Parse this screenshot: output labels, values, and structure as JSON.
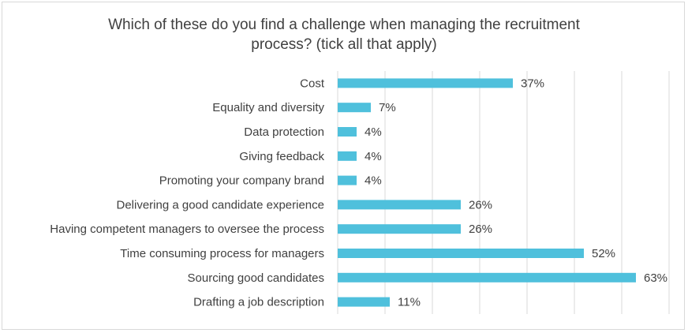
{
  "chart_data": {
    "type": "bar",
    "orientation": "horizontal",
    "title_lines": [
      "Which of these do you find a challenge when managing the recruitment",
      "process? (tick all that apply)"
    ],
    "categories": [
      "Cost",
      "Equality and diversity",
      "Data protection",
      "Giving feedback",
      "Promoting your company brand",
      "Delivering a good candidate experience",
      "Having competent managers to oversee the process",
      "Time consuming process for managers",
      "Sourcing good candidates",
      "Drafting a job description"
    ],
    "values": [
      37,
      7,
      4,
      4,
      4,
      26,
      26,
      52,
      63,
      11
    ],
    "value_labels": [
      "37%",
      "7%",
      "4%",
      "4%",
      "4%",
      "26%",
      "26%",
      "52%",
      "63%",
      "11%"
    ],
    "unit": "%",
    "xlim": [
      0,
      70
    ],
    "grid": true,
    "bar_color": "#4fc0dc"
  }
}
